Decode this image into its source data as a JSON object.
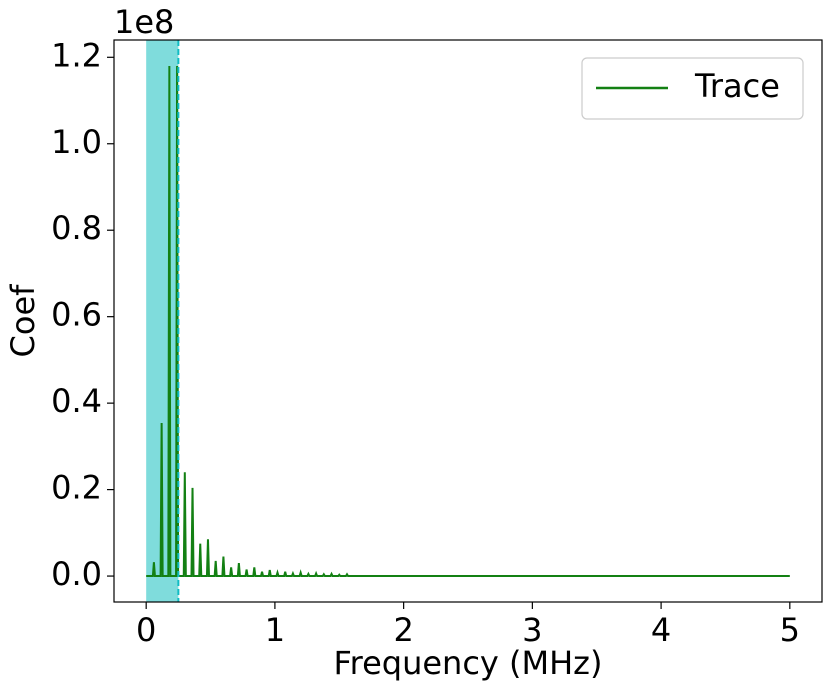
{
  "chart_data": {
    "type": "line",
    "ylabel": "Coef",
    "xlabel": "Frequency (MHz)",
    "offset_text": "1e8",
    "x": [
      0,
      0.052,
      0.06,
      0.068,
      0.112,
      0.12,
      0.128,
      0.172,
      0.18,
      0.188,
      0.232,
      0.24,
      0.248,
      0.292,
      0.3,
      0.308,
      0.352,
      0.36,
      0.368,
      0.412,
      0.42,
      0.428,
      0.472,
      0.48,
      0.488,
      0.532,
      0.54,
      0.548,
      0.592,
      0.6,
      0.608,
      0.652,
      0.66,
      0.668,
      0.712,
      0.72,
      0.728,
      0.772,
      0.78,
      0.788,
      0.832,
      0.84,
      0.848,
      0.892,
      0.9,
      0.908,
      0.952,
      0.96,
      0.968,
      1.012,
      1.02,
      1.028,
      1.072,
      1.08,
      1.088,
      1.132,
      1.14,
      1.148,
      1.192,
      1.2,
      1.208,
      1.252,
      1.26,
      1.268,
      1.312,
      1.32,
      1.328,
      1.372,
      1.38,
      1.388,
      1.432,
      1.44,
      1.448,
      1.492,
      1.5,
      1.508,
      1.552,
      1.56,
      1.568,
      5
    ],
    "series": [
      {
        "name": "Trace",
        "color": "#138013",
        "values": [
          0,
          0,
          0.032,
          0,
          0,
          0.354,
          0,
          0,
          1.18,
          0,
          0,
          1.18,
          0,
          0,
          0.24,
          0,
          0,
          0.204,
          0,
          0,
          0.075,
          0,
          0,
          0.085,
          0,
          0,
          0.035,
          0,
          0,
          0.045,
          0,
          0,
          0.02,
          0,
          0,
          0.03,
          0,
          0,
          0.015,
          0,
          0,
          0.02,
          0,
          0,
          0.01,
          0,
          0,
          0.014,
          0,
          0,
          0.008,
          0,
          0,
          0.01,
          0,
          0,
          0.006,
          0,
          0,
          0.008,
          0,
          0,
          0.005,
          0,
          0,
          0.006,
          0,
          0,
          0.004,
          0,
          0,
          0.005,
          0,
          0,
          0.003,
          0,
          0,
          0.004,
          0,
          0
        ]
      }
    ],
    "span": [
      0,
      0.25
    ],
    "span_color": "#7fdcdc",
    "vline": 0.25,
    "vline_color": "#10bcc4",
    "xlim": [
      -0.25,
      5.25
    ],
    "xticks": [
      0,
      1,
      2,
      3,
      4,
      5
    ],
    "ylim": [
      -0.06,
      1.24
    ],
    "yticks": [
      {
        "value": 0,
        "label": "0.0"
      },
      0.2,
      0.4,
      0.6,
      0.8,
      {
        "value": 1,
        "label": "1.0"
      },
      1.2
    ],
    "legend": "upper right"
  }
}
